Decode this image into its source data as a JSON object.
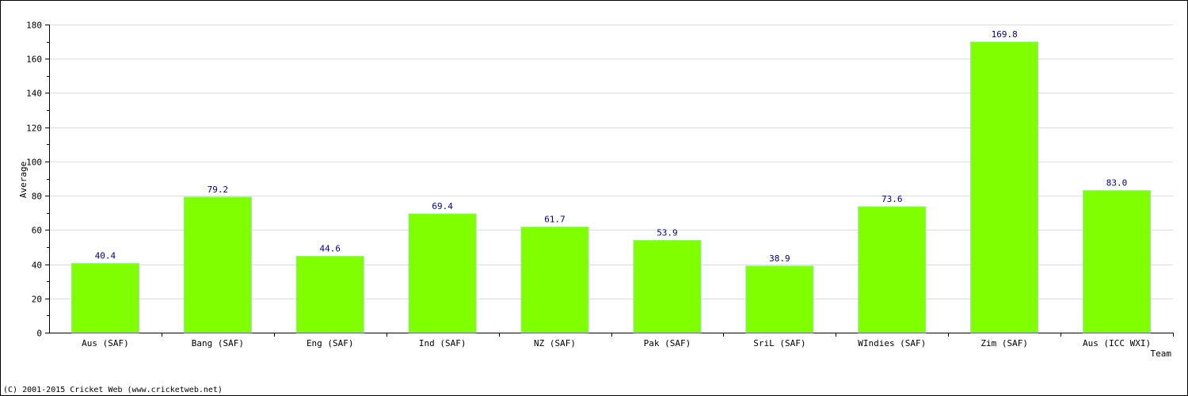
{
  "chart_data": {
    "type": "bar",
    "title": "",
    "xlabel": "Team",
    "ylabel": "Average",
    "ylim": [
      0,
      180
    ],
    "y_ticks": [
      0,
      20,
      40,
      60,
      80,
      100,
      120,
      140,
      160,
      180
    ],
    "categories": [
      "Aus (SAF)",
      "Bang (SAF)",
      "Eng (SAF)",
      "Ind (SAF)",
      "NZ (SAF)",
      "Pak (SAF)",
      "SriL (SAF)",
      "WIndies (SAF)",
      "Zim (SAF)",
      "Aus (ICC WXI)"
    ],
    "values": [
      40.4,
      79.2,
      44.6,
      69.4,
      61.7,
      53.9,
      38.9,
      73.6,
      169.8,
      83.0
    ],
    "data_labels": [
      "40.4",
      "79.2",
      "44.6",
      "69.4",
      "61.7",
      "53.9",
      "38.9",
      "73.6",
      "169.8",
      "83.0"
    ],
    "grid": true,
    "bar_color": "#80ff00",
    "data_label_color": "#000080"
  },
  "footer": {
    "copyright": "(C) 2001-2015 Cricket Web (www.cricketweb.net)"
  }
}
